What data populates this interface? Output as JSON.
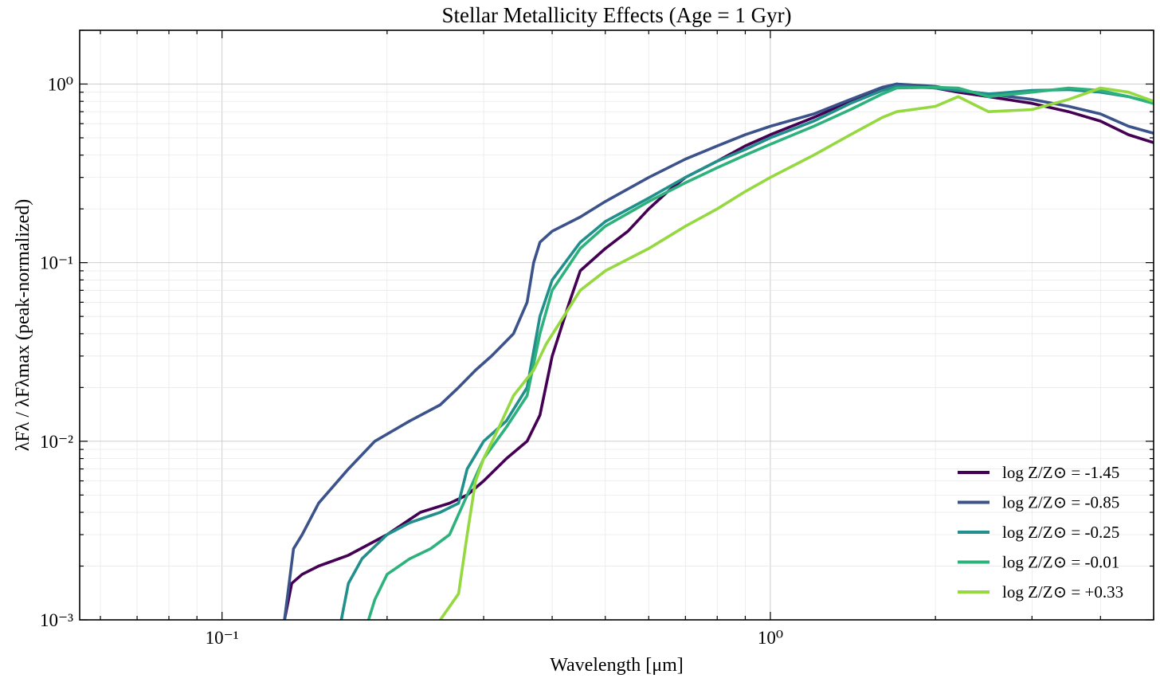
{
  "chart_data": {
    "type": "line",
    "title": "Stellar Metallicity Effects (Age = 1 Gyr)",
    "xlabel": "Wavelength [μm]",
    "ylabel": "λFλ / λFλmax (peak-normalized)",
    "xscale": "log",
    "yscale": "log",
    "xlim": [
      0.055,
      5.0
    ],
    "ylim": [
      0.001,
      2.0
    ],
    "x_ticks": [
      {
        "value": 0.1,
        "label": "10⁻¹"
      },
      {
        "value": 1.0,
        "label": "10⁰"
      }
    ],
    "y_ticks": [
      {
        "value": 0.001,
        "label": "10⁻³"
      },
      {
        "value": 0.01,
        "label": "10⁻²"
      },
      {
        "value": 0.1,
        "label": "10⁻¹"
      },
      {
        "value": 1.0,
        "label": "10⁰"
      }
    ],
    "grid": true,
    "legend_position": "lower-right",
    "series": [
      {
        "name": "log Z/Z⊙ = -1.45",
        "color": "#440154",
        "x": [
          0.13,
          0.134,
          0.14,
          0.15,
          0.17,
          0.2,
          0.23,
          0.26,
          0.28,
          0.3,
          0.33,
          0.36,
          0.38,
          0.4,
          0.43,
          0.45,
          0.5,
          0.55,
          0.6,
          0.65,
          0.7,
          0.8,
          0.9,
          1.0,
          1.2,
          1.4,
          1.6,
          1.7,
          2.0,
          2.2,
          2.5,
          3.0,
          3.5,
          4.0,
          4.5,
          5.0
        ],
        "y": [
          0.001,
          0.0016,
          0.0018,
          0.002,
          0.0023,
          0.003,
          0.004,
          0.0045,
          0.005,
          0.006,
          0.008,
          0.01,
          0.014,
          0.03,
          0.06,
          0.09,
          0.12,
          0.15,
          0.2,
          0.25,
          0.3,
          0.37,
          0.45,
          0.52,
          0.65,
          0.8,
          0.95,
          1.0,
          0.95,
          0.9,
          0.85,
          0.78,
          0.7,
          0.62,
          0.52,
          0.47
        ]
      },
      {
        "name": "log Z/Z⊙ = -0.85",
        "color": "#3b528b",
        "x": [
          0.13,
          0.135,
          0.14,
          0.15,
          0.17,
          0.19,
          0.22,
          0.25,
          0.27,
          0.29,
          0.31,
          0.34,
          0.36,
          0.37,
          0.38,
          0.4,
          0.45,
          0.5,
          0.6,
          0.7,
          0.8,
          0.9,
          1.0,
          1.2,
          1.4,
          1.6,
          1.7,
          2.0,
          2.2,
          2.5,
          3.0,
          3.5,
          4.0,
          4.5,
          5.0
        ],
        "y": [
          0.001,
          0.0025,
          0.003,
          0.0045,
          0.007,
          0.01,
          0.013,
          0.016,
          0.02,
          0.025,
          0.03,
          0.04,
          0.06,
          0.1,
          0.13,
          0.15,
          0.18,
          0.22,
          0.3,
          0.38,
          0.45,
          0.52,
          0.58,
          0.68,
          0.82,
          0.96,
          1.0,
          0.97,
          0.92,
          0.88,
          0.82,
          0.75,
          0.68,
          0.58,
          0.53
        ]
      },
      {
        "name": "log Z/Z⊙ = -0.25",
        "color": "#21908d",
        "x": [
          0.165,
          0.17,
          0.18,
          0.2,
          0.22,
          0.25,
          0.27,
          0.28,
          0.3,
          0.33,
          0.36,
          0.38,
          0.4,
          0.45,
          0.5,
          0.6,
          0.7,
          0.8,
          0.9,
          1.0,
          1.2,
          1.4,
          1.6,
          1.7,
          2.0,
          2.2,
          2.5,
          3.0,
          3.5,
          4.0,
          4.5,
          5.0
        ],
        "y": [
          0.001,
          0.0016,
          0.0022,
          0.003,
          0.0035,
          0.004,
          0.0045,
          0.007,
          0.01,
          0.013,
          0.02,
          0.05,
          0.08,
          0.13,
          0.17,
          0.23,
          0.3,
          0.37,
          0.43,
          0.5,
          0.62,
          0.78,
          0.92,
          0.97,
          0.95,
          0.92,
          0.88,
          0.92,
          0.93,
          0.9,
          0.85,
          0.78
        ]
      },
      {
        "name": "log Z/Z⊙ = -0.01",
        "color": "#2db27d",
        "x": [
          0.185,
          0.19,
          0.2,
          0.22,
          0.24,
          0.26,
          0.28,
          0.3,
          0.33,
          0.36,
          0.38,
          0.4,
          0.45,
          0.5,
          0.6,
          0.7,
          0.8,
          0.9,
          1.0,
          1.2,
          1.4,
          1.6,
          1.7,
          2.0,
          2.2,
          2.5,
          3.0,
          3.5,
          4.0,
          4.5,
          5.0
        ],
        "y": [
          0.001,
          0.0013,
          0.0018,
          0.0022,
          0.0025,
          0.003,
          0.005,
          0.008,
          0.012,
          0.018,
          0.04,
          0.07,
          0.12,
          0.16,
          0.22,
          0.28,
          0.34,
          0.4,
          0.46,
          0.58,
          0.72,
          0.88,
          0.95,
          0.96,
          0.95,
          0.85,
          0.9,
          0.95,
          0.92,
          0.85,
          0.78
        ]
      },
      {
        "name": "log Z/Z⊙ = +0.33",
        "color": "#95d840",
        "x": [
          0.25,
          0.27,
          0.28,
          0.29,
          0.3,
          0.32,
          0.34,
          0.37,
          0.39,
          0.42,
          0.45,
          0.5,
          0.6,
          0.7,
          0.8,
          0.9,
          1.0,
          1.2,
          1.4,
          1.6,
          1.7,
          2.0,
          2.2,
          2.5,
          3.0,
          3.5,
          4.0,
          4.5,
          5.0
        ],
        "y": [
          0.001,
          0.0014,
          0.003,
          0.006,
          0.008,
          0.012,
          0.018,
          0.025,
          0.035,
          0.05,
          0.07,
          0.09,
          0.12,
          0.16,
          0.2,
          0.25,
          0.3,
          0.4,
          0.52,
          0.65,
          0.7,
          0.75,
          0.85,
          0.7,
          0.72,
          0.82,
          0.95,
          0.9,
          0.8
        ]
      }
    ]
  }
}
